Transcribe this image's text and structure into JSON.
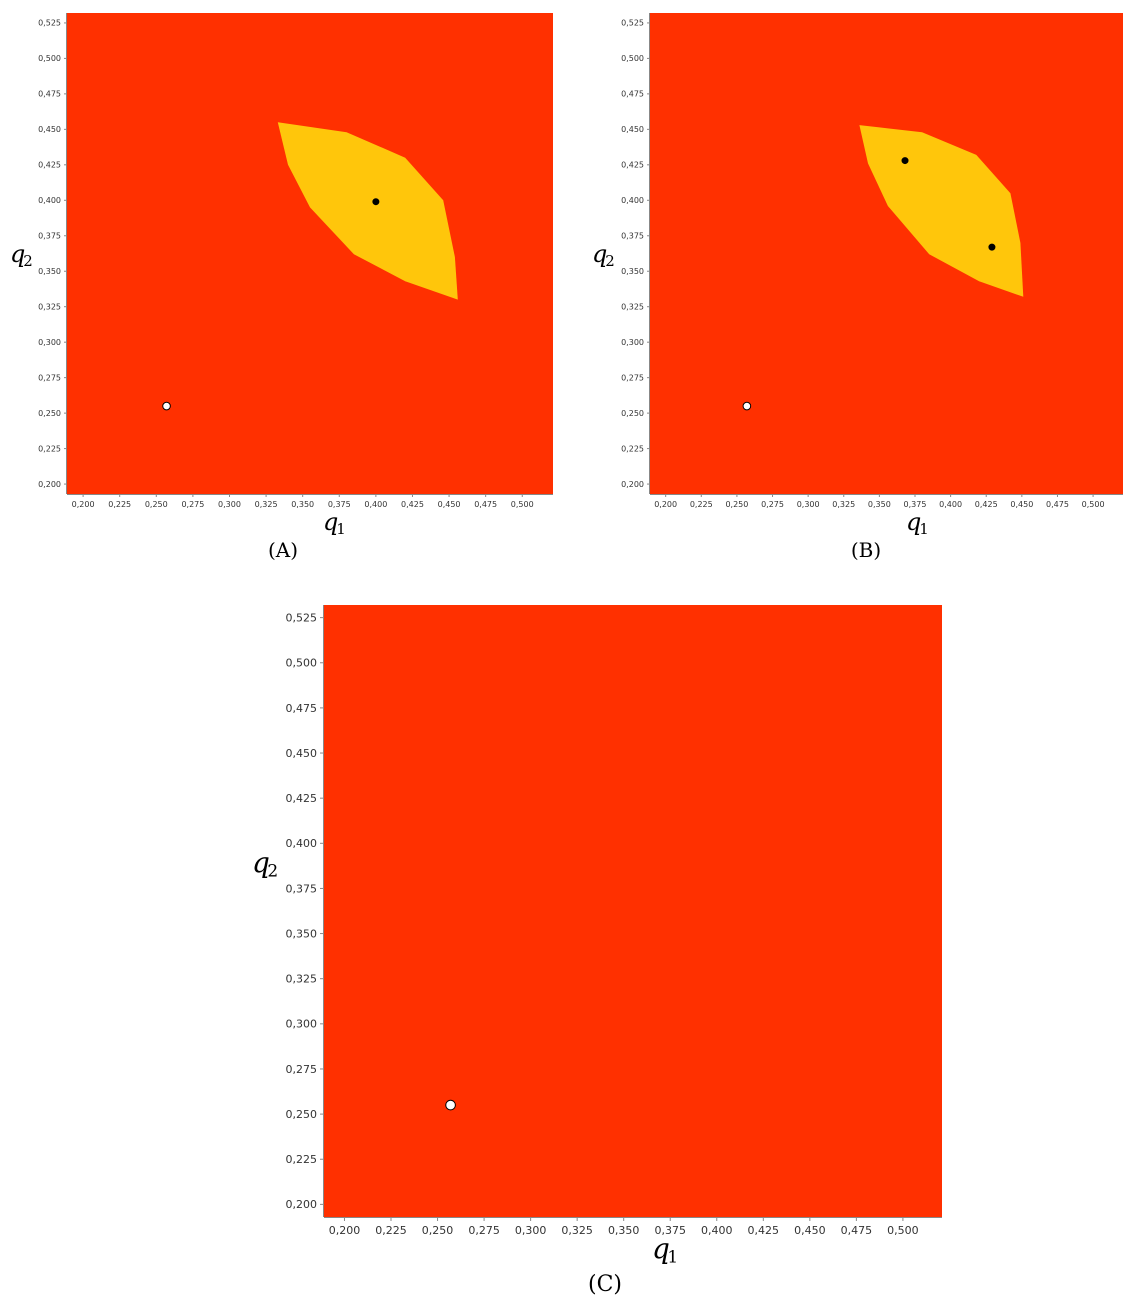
{
  "chart_data": [
    {
      "type": "heatmap",
      "caption": "(A)",
      "xlabel": "q",
      "xlabel_sub": "1",
      "ylabel": "q",
      "ylabel_sub": "2",
      "xlim": [
        0.189,
        0.521
      ],
      "ylim": [
        0.193,
        0.532
      ],
      "xticks": [
        0.2,
        0.225,
        0.25,
        0.275,
        0.3,
        0.325,
        0.35,
        0.375,
        0.4,
        0.425,
        0.45,
        0.475,
        0.5
      ],
      "xtick_labels": [
        "0,200",
        "0,225",
        "0,250",
        "0,275",
        "0,300",
        "0,325",
        "0,350",
        "0,375",
        "0,400",
        "0,425",
        "0,450",
        "0,475",
        "0,500"
      ],
      "yticks": [
        0.2,
        0.225,
        0.25,
        0.275,
        0.3,
        0.325,
        0.35,
        0.375,
        0.4,
        0.425,
        0.45,
        0.475,
        0.5,
        0.525
      ],
      "ytick_labels": [
        "0,200",
        "0,225",
        "0,250",
        "0,275",
        "0,300",
        "0,325",
        "0,350",
        "0,375",
        "0,400",
        "0,425",
        "0,450",
        "0,475",
        "0,500",
        "0,525"
      ],
      "background_color": "#ff3000",
      "regions": [
        {
          "color": "#ffc60b",
          "polygon": [
            [
              0.333,
              0.455
            ],
            [
              0.38,
              0.448
            ],
            [
              0.42,
              0.43
            ],
            [
              0.446,
              0.4
            ],
            [
              0.454,
              0.36
            ],
            [
              0.456,
              0.33
            ],
            [
              0.42,
              0.343
            ],
            [
              0.385,
              0.362
            ],
            [
              0.355,
              0.395
            ],
            [
              0.34,
              0.425
            ]
          ]
        }
      ],
      "points": [
        {
          "x": 0.4,
          "y": 0.399,
          "fill": "#000000",
          "stroke": "#000000"
        },
        {
          "x": 0.257,
          "y": 0.255,
          "fill": "#ffffff",
          "stroke": "#000000"
        }
      ]
    },
    {
      "type": "heatmap",
      "caption": "(B)",
      "xlabel": "q",
      "xlabel_sub": "1",
      "ylabel": "q",
      "ylabel_sub": "2",
      "xlim": [
        0.189,
        0.521
      ],
      "ylim": [
        0.193,
        0.532
      ],
      "xticks": [
        0.2,
        0.225,
        0.25,
        0.275,
        0.3,
        0.325,
        0.35,
        0.375,
        0.4,
        0.425,
        0.45,
        0.475,
        0.5
      ],
      "xtick_labels": [
        "0,200",
        "0,225",
        "0,250",
        "0,275",
        "0,300",
        "0,325",
        "0,350",
        "0,375",
        "0,400",
        "0,425",
        "0,450",
        "0,475",
        "0,500"
      ],
      "yticks": [
        0.2,
        0.225,
        0.25,
        0.275,
        0.3,
        0.325,
        0.35,
        0.375,
        0.4,
        0.425,
        0.45,
        0.475,
        0.5,
        0.525
      ],
      "ytick_labels": [
        "0,200",
        "0,225",
        "0,250",
        "0,275",
        "0,300",
        "0,325",
        "0,350",
        "0,375",
        "0,400",
        "0,425",
        "0,450",
        "0,475",
        "0,500",
        "0,525"
      ],
      "background_color": "#ff3000",
      "regions": [
        {
          "color": "#ffc60b",
          "polygon": [
            [
              0.336,
              0.453
            ],
            [
              0.38,
              0.448
            ],
            [
              0.418,
              0.432
            ],
            [
              0.442,
              0.405
            ],
            [
              0.449,
              0.37
            ],
            [
              0.451,
              0.332
            ],
            [
              0.42,
              0.343
            ],
            [
              0.385,
              0.362
            ],
            [
              0.356,
              0.396
            ],
            [
              0.342,
              0.426
            ]
          ]
        }
      ],
      "points": [
        {
          "x": 0.368,
          "y": 0.428,
          "fill": "#000000",
          "stroke": "#000000"
        },
        {
          "x": 0.429,
          "y": 0.367,
          "fill": "#000000",
          "stroke": "#000000"
        },
        {
          "x": 0.257,
          "y": 0.255,
          "fill": "#ffffff",
          "stroke": "#000000"
        }
      ]
    },
    {
      "type": "heatmap",
      "caption": "(C)",
      "xlabel": "q",
      "xlabel_sub": "1",
      "ylabel": "q",
      "ylabel_sub": "2",
      "xlim": [
        0.189,
        0.521
      ],
      "ylim": [
        0.193,
        0.532
      ],
      "xticks": [
        0.2,
        0.225,
        0.25,
        0.275,
        0.3,
        0.325,
        0.35,
        0.375,
        0.4,
        0.425,
        0.45,
        0.475,
        0.5
      ],
      "xtick_labels": [
        "0,200",
        "0,225",
        "0,250",
        "0,275",
        "0,300",
        "0,325",
        "0,350",
        "0,375",
        "0,400",
        "0,425",
        "0,450",
        "0,475",
        "0,500"
      ],
      "yticks": [
        0.2,
        0.225,
        0.25,
        0.275,
        0.3,
        0.325,
        0.35,
        0.375,
        0.4,
        0.425,
        0.45,
        0.475,
        0.5,
        0.525
      ],
      "ytick_labels": [
        "0,200",
        "0,225",
        "0,250",
        "0,275",
        "0,300",
        "0,325",
        "0,350",
        "0,375",
        "0,400",
        "0,425",
        "0,450",
        "0,475",
        "0,500",
        "0,525"
      ],
      "background_color": "#ff3000",
      "regions": [],
      "points": [
        {
          "x": 0.257,
          "y": 0.255,
          "fill": "#ffffff",
          "stroke": "#000000"
        }
      ]
    }
  ]
}
